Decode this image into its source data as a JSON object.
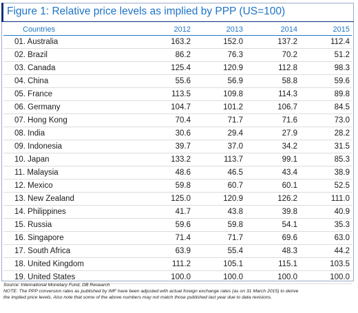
{
  "figure": {
    "title": "Figure 1: Relative price levels as implied by PPP (US=100)"
  },
  "table": {
    "headers": [
      "Countries",
      "2012",
      "2013",
      "2014",
      "2015"
    ],
    "rows": [
      {
        "name": "01. Australia",
        "values": [
          "163.2",
          "152.0",
          "137.2",
          "112.4"
        ]
      },
      {
        "name": "02. Brazil",
        "values": [
          "86.2",
          "76.3",
          "70.2",
          "51.2"
        ]
      },
      {
        "name": "03. Canada",
        "values": [
          "125.4",
          "120.9",
          "112.8",
          "98.3"
        ]
      },
      {
        "name": "04. China",
        "values": [
          "55.6",
          "56.9",
          "58.8",
          "59.6"
        ]
      },
      {
        "name": "05. France",
        "values": [
          "113.5",
          "109.8",
          "114.3",
          "89.8"
        ]
      },
      {
        "name": "06. Germany",
        "values": [
          "104.7",
          "101.2",
          "106.7",
          "84.5"
        ]
      },
      {
        "name": "07. Hong Kong",
        "values": [
          "70.4",
          "71.7",
          "71.6",
          "73.0"
        ]
      },
      {
        "name": "08. India",
        "values": [
          "30.6",
          "29.4",
          "27.9",
          "28.2"
        ]
      },
      {
        "name": "09. Indonesia",
        "values": [
          "39.7",
          "37.0",
          "34.2",
          "31.5"
        ]
      },
      {
        "name": "10. Japan",
        "values": [
          "133.2",
          "113.7",
          "99.1",
          "85.3"
        ]
      },
      {
        "name": "11. Malaysia",
        "values": [
          "48.6",
          "46.5",
          "43.4",
          "38.9"
        ]
      },
      {
        "name": "12. Mexico",
        "values": [
          "59.8",
          "60.7",
          "60.1",
          "52.5"
        ]
      },
      {
        "name": "13. New Zealand",
        "values": [
          "125.0",
          "120.9",
          "126.2",
          "111.0"
        ]
      },
      {
        "name": "14. Philippines",
        "values": [
          "41.7",
          "43.8",
          "39.8",
          "40.9"
        ]
      },
      {
        "name": "15. Russia",
        "values": [
          "59.6",
          "59.8",
          "54.1",
          "35.3"
        ]
      },
      {
        "name": "16. Singapore",
        "values": [
          "71.4",
          "71.7",
          "69.6",
          "63.0"
        ]
      },
      {
        "name": "17. South Africa",
        "values": [
          "63.9",
          "55.4",
          "48.3",
          "44.2"
        ]
      },
      {
        "name": "18. United Kingdom",
        "values": [
          "111.2",
          "105.1",
          "115.1",
          "103.5"
        ]
      },
      {
        "name": "19. United States",
        "values": [
          "100.0",
          "100.0",
          "100.0",
          "100.0"
        ]
      }
    ]
  },
  "notes": {
    "source": "Source: International Monetary Fund, DB Research",
    "note_line1": "NOTE: The PPP conversion rates as published by IMF have been adjusted with actual foreign exchange rates (as on 31 March 2015) to derive",
    "note_line2": "the implied price levels. Also note that some of the above numbers may not match those published last year due to data revisions."
  },
  "colors": {
    "title": "#1e73c8",
    "accent": "#0a2f7a",
    "header": "#1e73c8",
    "row_rule": "#dcdcdc"
  }
}
